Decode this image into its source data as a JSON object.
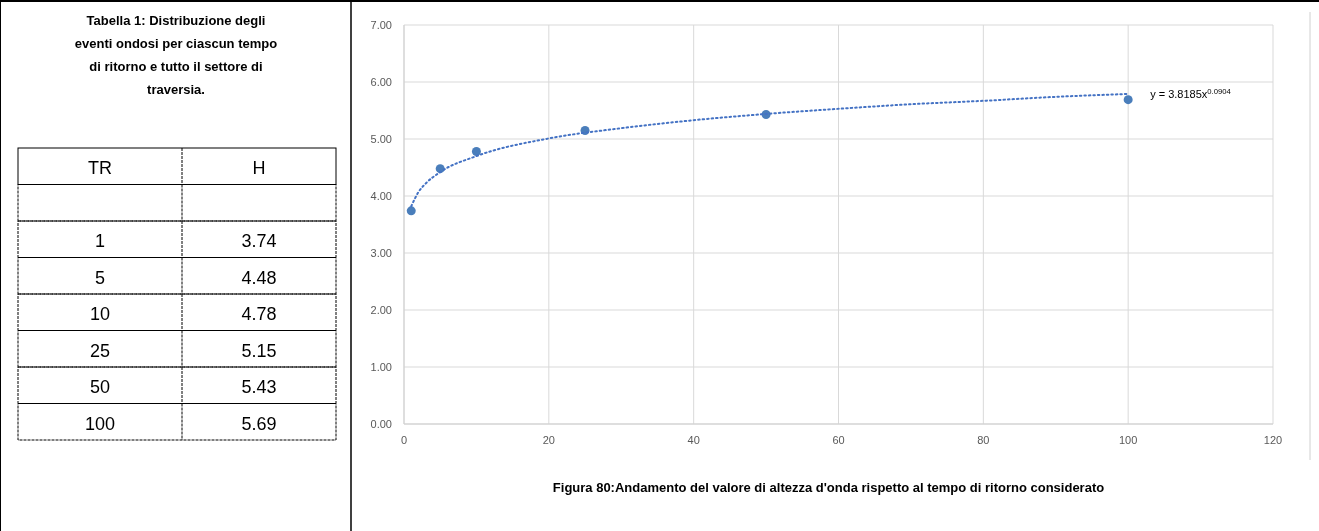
{
  "chart_data": [
    {
      "type": "other",
      "title": "Tabella 1: Distribuzione degli eventi ondosi per ciascun tempo di ritorno e tutto il settore di traversia.",
      "annotations": [
        "TR",
        "H",
        "1",
        "3.74",
        "5",
        "4.48",
        "10",
        "4.78",
        "25",
        "5.15",
        "50",
        "5.43",
        "100",
        "5.69"
      ]
    },
    {
      "type": "scatter",
      "title": "Figura 80:Andamento del valore di altezza d'onda rispetto al tempo di ritorno considerato",
      "annotations": [
        {
          "text": "y = 3.8185x$^{0.0904}$",
          "x": 100,
          "y": 5.79
        }
      ],
      "xlim": [
        0,
        120
      ],
      "xticks": [
        0,
        20,
        40,
        60,
        80,
        100,
        120
      ],
      "ylim": [
        0,
        7
      ],
      "yticks": [
        {
          "value": 0,
          "label": "0.00"
        },
        {
          "value": 1,
          "label": "1.00"
        },
        {
          "value": 2,
          "label": "2.00"
        },
        {
          "value": 3,
          "label": "3.00"
        },
        {
          "value": 4,
          "label": "4.00"
        },
        {
          "value": 5,
          "label": "5.00"
        },
        {
          "value": 6,
          "label": "6.00"
        },
        {
          "value": 7,
          "label": "7.00"
        }
      ],
      "grid": true,
      "series": [
        {
          "marker": "circle",
          "color": "#4a7ebb",
          "x": [
            1,
            5,
            10,
            25,
            50,
            100
          ],
          "values": [
            3.74,
            4.48,
            4.78,
            5.15,
            5.43,
            5.69
          ]
        },
        {
          "type": "line",
          "line_style": "dotted",
          "color": "#4472c4",
          "x": [
            1,
            2,
            3,
            5,
            10,
            20,
            30,
            40,
            50,
            60,
            70,
            80,
            90,
            100
          ],
          "values": [
            3.82,
            4.07,
            4.22,
            4.42,
            4.7,
            5.01,
            5.19,
            5.33,
            5.44,
            5.53,
            5.61,
            5.67,
            5.74,
            5.79
          ]
        }
      ]
    }
  ]
}
